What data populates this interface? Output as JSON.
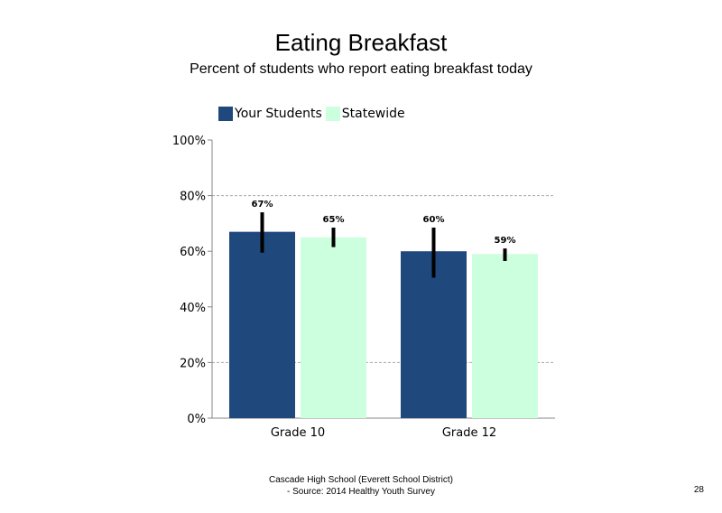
{
  "slide": {
    "title": "Eating Breakfast",
    "subtitle": "Percent of students who report eating breakfast today",
    "footer_line1": "Cascade High School (Everett School District)",
    "footer_line2": "- Source: 2014 Healthy  Youth Survey",
    "page_number": "28"
  },
  "chart_data": {
    "type": "bar",
    "title": "Eating Breakfast",
    "subtitle": "Percent of students who report eating breakfast today",
    "categories": [
      "Grade 10",
      "Grade 12"
    ],
    "series": [
      {
        "name": "Your Students",
        "color": "#1f497d",
        "values": [
          67,
          60
        ],
        "labels": [
          "67%",
          "60%"
        ],
        "error_low": [
          59.5,
          50.5
        ],
        "error_high": [
          74,
          68.5
        ]
      },
      {
        "name": "Statewide",
        "color": "#ccffdd",
        "values": [
          65,
          59
        ],
        "labels": [
          "65%",
          "59%"
        ],
        "error_low": [
          61.5,
          56.5
        ],
        "error_high": [
          68.5,
          61
        ]
      }
    ],
    "ylim": [
      0,
      100
    ],
    "yticks": [
      0,
      20,
      40,
      60,
      80,
      100
    ],
    "ytick_labels": [
      "0%",
      "20%",
      "40%",
      "60%",
      "80%",
      "100%"
    ],
    "gridlines": [
      20,
      80
    ],
    "legend": "top-left",
    "xlabel": "",
    "ylabel": ""
  }
}
